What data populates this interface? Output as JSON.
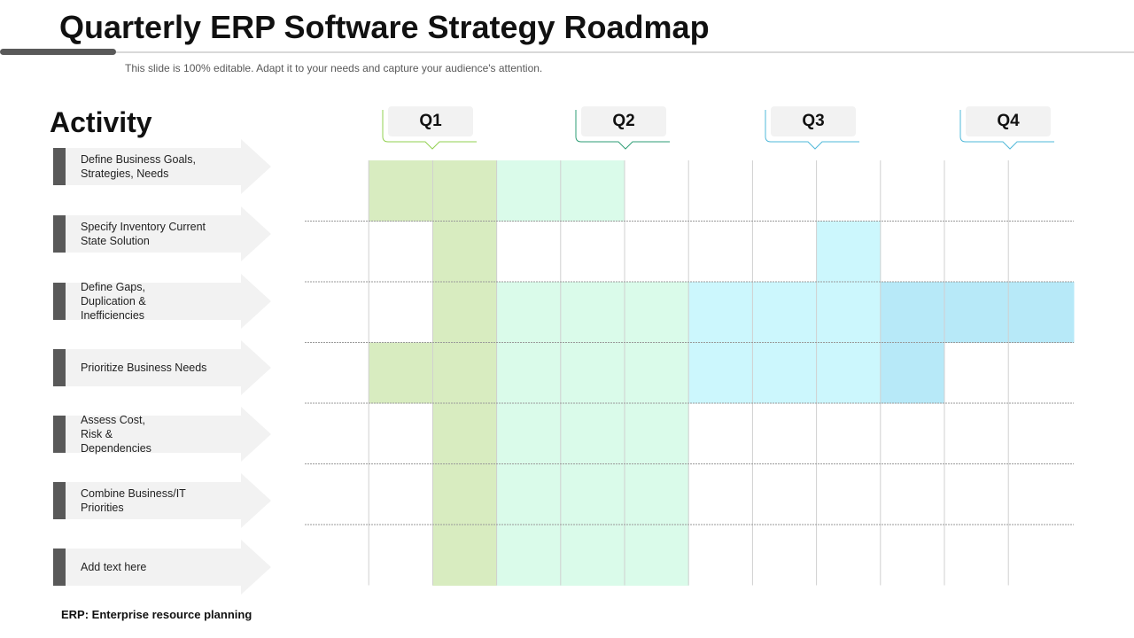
{
  "title": "Quarterly ERP Software Strategy Roadmap",
  "subtitle": "This slide is 100% editable. Adapt it to your needs and capture your audience's attention.",
  "activity_heading": "Activity",
  "activities": [
    {
      "label": "Define  Business Goals,\nStrategies, Needs"
    },
    {
      "label": "Specify Inventory  Current\nState Solution"
    },
    {
      "label": "Define  Gaps,\nDuplication &\nInefficiencies"
    },
    {
      "label": "Prioritize Business Needs"
    },
    {
      "label": "Assess Cost,\nRisk &\nDependencies"
    },
    {
      "label": "Combine  Business/IT\nPriorities"
    },
    {
      "label": "Add text here"
    }
  ],
  "quarters": [
    {
      "label": "Q1",
      "color": "#92d050"
    },
    {
      "label": "Q2",
      "color": "#2e9e75"
    },
    {
      "label": "Q3",
      "color": "#4fb8d9"
    },
    {
      "label": "Q4",
      "color": "#4fb8d9"
    }
  ],
  "colors": {
    "green_dark": "#d8ecc0",
    "green_light": "#dafbea",
    "cyan_light": "#ccf7fd",
    "cyan_mid": "#b7e9f8"
  },
  "timeline": {
    "columns": 11,
    "rows": [
      {
        "cells": [
          [
            1,
            "green_dark"
          ],
          [
            2,
            "green_dark"
          ],
          [
            3,
            "green_light"
          ],
          [
            4,
            "green_light"
          ]
        ]
      },
      {
        "cells": [
          [
            2,
            "green_dark"
          ],
          [
            8,
            "cyan_light"
          ]
        ]
      },
      {
        "cells": [
          [
            2,
            "green_dark"
          ],
          [
            3,
            "green_light"
          ],
          [
            4,
            "green_light"
          ],
          [
            5,
            "green_light"
          ],
          [
            6,
            "cyan_light"
          ],
          [
            7,
            "cyan_light"
          ],
          [
            8,
            "cyan_light"
          ],
          [
            9,
            "cyan_mid"
          ],
          [
            10,
            "cyan_mid"
          ],
          [
            11,
            "cyan_mid"
          ]
        ]
      },
      {
        "cells": [
          [
            1,
            "green_dark"
          ],
          [
            2,
            "green_dark"
          ],
          [
            3,
            "green_light"
          ],
          [
            4,
            "green_light"
          ],
          [
            5,
            "green_light"
          ],
          [
            6,
            "cyan_light"
          ],
          [
            7,
            "cyan_light"
          ],
          [
            8,
            "cyan_light"
          ],
          [
            9,
            "cyan_mid"
          ]
        ]
      },
      {
        "cells": [
          [
            2,
            "green_dark"
          ],
          [
            3,
            "green_light"
          ],
          [
            4,
            "green_light"
          ],
          [
            5,
            "green_light"
          ]
        ]
      },
      {
        "cells": [
          [
            2,
            "green_dark"
          ],
          [
            3,
            "green_light"
          ],
          [
            4,
            "green_light"
          ],
          [
            5,
            "green_light"
          ]
        ]
      },
      {
        "cells": [
          [
            2,
            "green_dark"
          ],
          [
            3,
            "green_light"
          ],
          [
            4,
            "green_light"
          ],
          [
            5,
            "green_light"
          ]
        ]
      }
    ]
  },
  "footnote": "ERP: Enterprise  resource  planning"
}
